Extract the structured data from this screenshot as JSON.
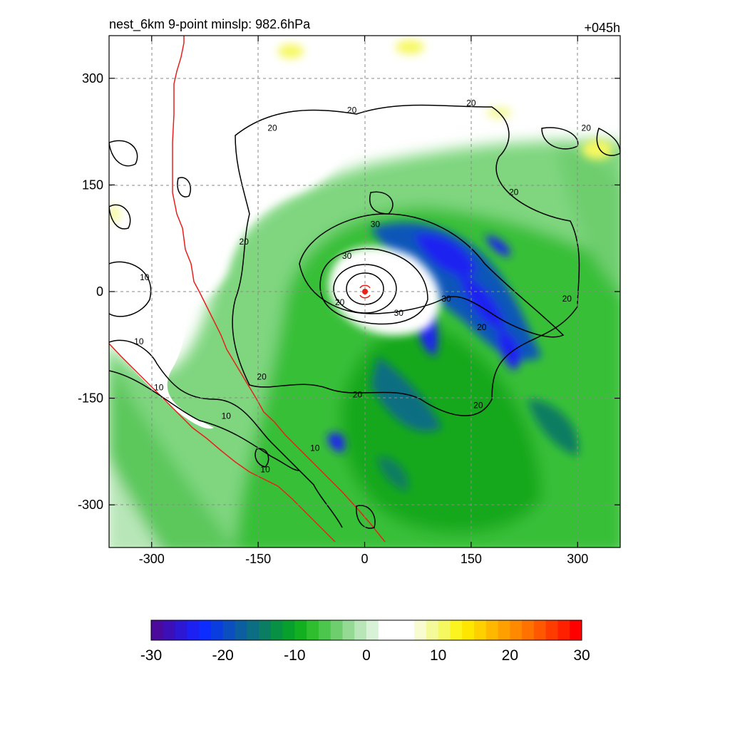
{
  "header": {
    "title": "nest_6km  9-point minslp: 982.6hPa",
    "forecast_hour": "+045h"
  },
  "map": {
    "x_ticks": [
      "-300",
      "-150",
      "0",
      "150",
      "300"
    ],
    "y_ticks": [
      "300",
      "150",
      "0",
      "-150",
      "-300"
    ],
    "x_range": [
      -360,
      360
    ],
    "y_range": [
      -360,
      360
    ],
    "grid": true,
    "contour_labels": [
      {
        "text": "20",
        "x": -130,
        "y": 230
      },
      {
        "text": "20",
        "x": -18,
        "y": 255
      },
      {
        "text": "20",
        "x": 150,
        "y": 265
      },
      {
        "text": "20",
        "x": 312,
        "y": 230
      },
      {
        "text": "20",
        "x": 210,
        "y": 140
      },
      {
        "text": "20",
        "x": -170,
        "y": 70
      },
      {
        "text": "10",
        "x": -310,
        "y": 20
      },
      {
        "text": "30",
        "x": 15,
        "y": 95
      },
      {
        "text": "30",
        "x": -25,
        "y": 50
      },
      {
        "text": "20",
        "x": -35,
        "y": -15
      },
      {
        "text": "30",
        "x": 48,
        "y": -30
      },
      {
        "text": "30",
        "x": 115,
        "y": -10
      },
      {
        "text": "20",
        "x": 285,
        "y": -10
      },
      {
        "text": "20",
        "x": 165,
        "y": -50
      },
      {
        "text": "20",
        "x": -145,
        "y": -120
      },
      {
        "text": "20",
        "x": -10,
        "y": -145
      },
      {
        "text": "20",
        "x": 160,
        "y": -160
      },
      {
        "text": "10",
        "x": -318,
        "y": -70
      },
      {
        "text": "10",
        "x": -290,
        "y": -135
      },
      {
        "text": "10",
        "x": -195,
        "y": -175
      },
      {
        "text": "10",
        "x": -70,
        "y": -220
      },
      {
        "text": "10",
        "x": -140,
        "y": -250
      }
    ],
    "storm_center": {
      "x": 0,
      "y": 0
    }
  },
  "colorbar": {
    "ticks": [
      "-30",
      "-20",
      "-10",
      "0",
      "10",
      "20",
      "30"
    ],
    "range": [
      -30,
      30
    ],
    "colors": [
      "#4b0a9c",
      "#3c0fb8",
      "#2b17d4",
      "#1c20f0",
      "#0d2cff",
      "#0a3de0",
      "#0a4ec0",
      "#0b5fa0",
      "#0c6e82",
      "#0a7d62",
      "#089044",
      "#08a02c",
      "#12b020",
      "#2ebe2e",
      "#4cc64c",
      "#6ece6e",
      "#94da94",
      "#b8e6b8",
      "#d8f2d8",
      "#ffffff",
      "#ffffff",
      "#ffffff",
      "#f8fcd0",
      "#f4fa9a",
      "#f6f860",
      "#fbf41e",
      "#ffe600",
      "#ffd000",
      "#ffb800",
      "#ffa000",
      "#ff8a00",
      "#ff7200",
      "#ff5800",
      "#ff3c00",
      "#ff2000",
      "#ff0000"
    ]
  }
}
